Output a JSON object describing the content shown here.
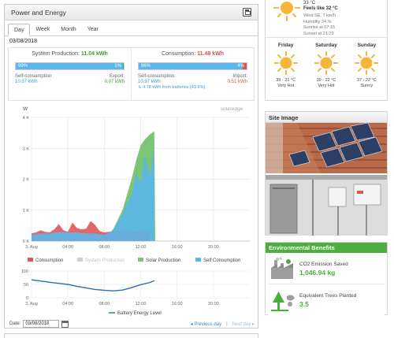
{
  "panel": {
    "title": "Power and Energy",
    "tabs": [
      "Day",
      "Week",
      "Month",
      "Year"
    ],
    "active_tab": "Day",
    "date": "03/08/2018"
  },
  "production": {
    "label": "System Production:",
    "value": "11.04 kWh",
    "bar_left_pct": "99%",
    "bar_right_pct": "1%",
    "self_fraction": 0.99,
    "self_label": "Self-consumption:",
    "self_value": "10.97 kWh",
    "export_label": "Export:",
    "export_value": "0.07 kWh"
  },
  "consumption": {
    "label": "Consumption:",
    "value": "11.48 kWh",
    "bar_left_pct": "96%",
    "bar_right_pct": "4%",
    "self_fraction": 0.96,
    "self_label": "Self-consumption:",
    "self_value": "10.97 kWh",
    "battery_note": "4.78 kWh from batteries (43.6%)",
    "import_label": "Import:",
    "import_value": "0.51 kWh"
  },
  "colors": {
    "solar": "#7cc576",
    "self": "#5bb6e9",
    "consumption": "#e05759",
    "export": "#3ab34a",
    "import": "#e25355",
    "battery": "#2b6cb8",
    "accent_green": "#4cae3f"
  },
  "brand_logo_text": "solaredge",
  "chart_data": [
    {
      "type": "area",
      "ylabel": "W",
      "y_ticks": [
        "0 K",
        "1 K",
        "2 K",
        "3 K",
        "4 K"
      ],
      "x_ticks": [
        "3. Aug",
        "04:00",
        "08:00",
        "12:00",
        "16:00",
        "20:00"
      ],
      "ylim": [
        0,
        4000
      ],
      "xlim": [
        0,
        24
      ],
      "grid": true,
      "legend_position": "bottom",
      "legend": [
        "Consumption",
        "System Production",
        "Solar Production",
        "Self Consumption"
      ],
      "series": [
        {
          "name": "Consumption",
          "x": [
            0,
            0.5,
            1,
            1.5,
            2,
            2.5,
            3,
            3.5,
            4,
            4.5,
            5,
            5.5,
            6,
            6.5,
            7,
            7.5,
            8,
            8.5,
            9,
            9.5,
            10,
            10.5,
            11,
            11.5,
            12,
            12.5,
            13
          ],
          "y": [
            250,
            280,
            350,
            300,
            280,
            380,
            550,
            350,
            300,
            600,
            420,
            380,
            400,
            650,
            520,
            320,
            280,
            300,
            320,
            350,
            300,
            380,
            320,
            300,
            350,
            320,
            300
          ]
        },
        {
          "name": "Solar Production",
          "x": [
            8,
            8.5,
            9,
            9.5,
            10,
            10.5,
            11,
            11.5,
            12,
            12.5,
            13,
            13.5,
            13.6
          ],
          "y": [
            100,
            200,
            400,
            700,
            1000,
            1500,
            2000,
            2600,
            3100,
            3300,
            3450,
            3550,
            100
          ]
        },
        {
          "name": "Self Consumption",
          "x": [
            0,
            1,
            2,
            3,
            4,
            5,
            6,
            7,
            8,
            9,
            10,
            11,
            11.5,
            12,
            12.5,
            13,
            13.5
          ],
          "y": [
            200,
            250,
            250,
            300,
            280,
            280,
            250,
            250,
            200,
            350,
            900,
            1500,
            2200,
            1900,
            2800,
            2100,
            3000
          ]
        }
      ]
    },
    {
      "type": "line",
      "y_ticks": [
        "0",
        "50",
        "100"
      ],
      "x_ticks": [
        "3. Aug",
        "04:00",
        "08:00",
        "12:00",
        "16:00",
        "20:00"
      ],
      "ylim": [
        0,
        100
      ],
      "xlim": [
        0,
        24
      ],
      "legend_position": "bottom",
      "legend": [
        "Battery Energy Level"
      ],
      "series": [
        {
          "name": "Battery Energy Level",
          "x": [
            0,
            1,
            2,
            3,
            4,
            5,
            6,
            7,
            8,
            9,
            10,
            11,
            12,
            13,
            13.5
          ],
          "y": [
            67,
            63,
            58,
            54,
            50,
            43,
            37,
            31,
            28,
            26,
            29,
            38,
            49,
            57,
            64
          ]
        }
      ]
    }
  ],
  "footer": {
    "date_label": "Date:",
    "date_value": "03/08/2018",
    "prev_label": "◂ Previous day",
    "separator": "|",
    "next_label": "Next day ▸"
  },
  "weather": {
    "today_temp": "33 °C",
    "today_feels": "Feels like 32 °C",
    "today_wind": "Wind SE, 7 km/h",
    "today_humidity": "Humidity 34 %",
    "today_sunrise": "Sunrise at 07:15",
    "today_sunset": "Sunset at 21:29",
    "days": [
      {
        "name": "Friday",
        "temp": "39 - 21 °C",
        "desc": "Very Hot",
        "icon": "sun-icon"
      },
      {
        "name": "Saturday",
        "temp": "39 - 22 °C",
        "desc": "Very Hot",
        "icon": "sun-icon"
      },
      {
        "name": "Sunday",
        "temp": "37 - 22 °C",
        "desc": "Sunny",
        "icon": "sun-icon"
      }
    ]
  },
  "site_image": {
    "title": "Site Image"
  },
  "environment": {
    "title": "Environmental Benefits",
    "co2_label": "CO2 Emission Saved",
    "co2_value": "1,046.94 kg",
    "co2_icon": "factory-icon",
    "trees_label": "Equivalent Trees Planted",
    "trees_value": "3.5",
    "trees_icon": "tree-icon"
  }
}
